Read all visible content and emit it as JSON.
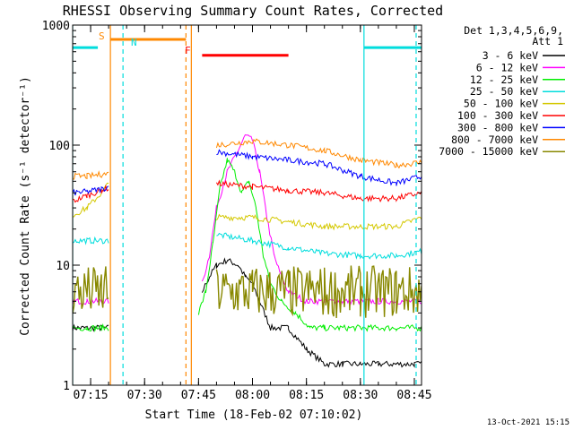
{
  "chart_data": {
    "type": "line",
    "title": "RHESSI Observing Summary Count Rates, Corrected",
    "xlabel": "Start Time (18-Feb-02 07:10:02)",
    "ylabel": "Corrected Count Rate (s⁻¹ detector⁻¹)",
    "yscale": "log",
    "ylim": [
      1,
      1000
    ],
    "xlim_minutes": [
      0,
      97
    ],
    "x_ticks": [
      {
        "value": 5,
        "label": "07:15"
      },
      {
        "value": 20,
        "label": "07:30"
      },
      {
        "value": 35,
        "label": "07:45"
      },
      {
        "value": 50,
        "label": "08:00"
      },
      {
        "value": 65,
        "label": "08:15"
      },
      {
        "value": 80,
        "label": "08:30"
      },
      {
        "value": 95,
        "label": "08:45"
      }
    ],
    "y_ticks": [
      {
        "value": 1,
        "label": "1"
      },
      {
        "value": 10,
        "label": "10"
      },
      {
        "value": 100,
        "label": "100"
      },
      {
        "value": 1000,
        "label": "1000"
      }
    ],
    "legend": {
      "header": [
        "Det 1,3,4,5,6,9,",
        "Att 1"
      ],
      "placement": "right"
    },
    "series": [
      {
        "name": "3 - 6 keV",
        "color": "#000000",
        "x": [
          0,
          4,
          8,
          10,
          30,
          33,
          36,
          38,
          40,
          43,
          46,
          48,
          50,
          52,
          55,
          60,
          65,
          70,
          75,
          80,
          85,
          90,
          95,
          97
        ],
        "y": [
          3,
          3,
          3,
          3,
          null,
          null,
          6,
          8,
          10,
          11,
          10,
          8,
          7,
          5,
          3,
          3,
          2,
          1.5,
          1.5,
          1.5,
          1.5,
          1.5,
          1.5,
          1.5
        ]
      },
      {
        "name": "6 - 12 keV",
        "color": "#ff00ff",
        "x": [
          0,
          4,
          8,
          10,
          30,
          33,
          36,
          38,
          40,
          43,
          46,
          48,
          50,
          52,
          54,
          56,
          58,
          60,
          65,
          70,
          75,
          80,
          85,
          90,
          95,
          97
        ],
        "y": [
          5,
          5,
          5,
          5,
          null,
          null,
          7,
          12,
          30,
          60,
          90,
          120,
          110,
          60,
          25,
          12,
          8,
          6,
          5,
          5,
          5,
          5,
          5,
          5,
          5,
          5
        ]
      },
      {
        "name": "12 - 25 keV",
        "color": "#00ee00",
        "x": [
          0,
          4,
          8,
          10,
          30,
          33,
          35,
          37,
          39,
          41,
          43,
          45,
          47,
          49,
          51,
          53,
          55,
          58,
          62,
          66,
          70,
          80,
          90,
          97
        ],
        "y": [
          3,
          3,
          3,
          3,
          null,
          null,
          4,
          6,
          15,
          45,
          75,
          60,
          40,
          50,
          30,
          12,
          7,
          5,
          4,
          3,
          3,
          3,
          3,
          3
        ]
      },
      {
        "name": "25 - 50 keV",
        "color": "#00dddd",
        "x": [
          0,
          4,
          8,
          10,
          30,
          33,
          40,
          50,
          60,
          70,
          80,
          90,
          97
        ],
        "y": [
          16,
          16,
          16,
          16,
          null,
          null,
          18,
          16,
          14,
          12.5,
          12,
          12,
          13
        ]
      },
      {
        "name": "50 - 100 keV",
        "color": "#d4c800",
        "x": [
          0,
          4,
          8,
          10,
          30,
          33,
          40,
          50,
          60,
          70,
          80,
          90,
          97
        ],
        "y": [
          26,
          30,
          40,
          48,
          null,
          null,
          25,
          25,
          23,
          21,
          21,
          21,
          25
        ]
      },
      {
        "name": "100 - 300 keV",
        "color": "#ff0000",
        "x": [
          0,
          4,
          8,
          10,
          30,
          33,
          40,
          50,
          60,
          70,
          80,
          90,
          97
        ],
        "y": [
          34,
          38,
          42,
          44,
          null,
          null,
          48,
          45,
          42,
          40,
          36,
          36,
          40
        ]
      },
      {
        "name": "300 - 800 keV",
        "color": "#0000ff",
        "x": [
          0,
          4,
          8,
          10,
          30,
          33,
          40,
          50,
          60,
          70,
          80,
          90,
          97
        ],
        "y": [
          40,
          41,
          43,
          45,
          null,
          null,
          88,
          80,
          75,
          70,
          55,
          48,
          55
        ]
      },
      {
        "name": "800 - 7000 keV",
        "color": "#ff8800",
        "x": [
          0,
          4,
          8,
          10,
          30,
          33,
          40,
          50,
          60,
          70,
          80,
          90,
          97
        ],
        "y": [
          55,
          55,
          57,
          58,
          null,
          null,
          100,
          108,
          100,
          90,
          75,
          68,
          72
        ]
      },
      {
        "name": "7000 - 15000 keV",
        "color": "#888800",
        "x": [
          0,
          4,
          8,
          10,
          30,
          33,
          40,
          50,
          60,
          70,
          80,
          90,
          97
        ],
        "y": [
          6,
          6,
          6,
          6,
          null,
          null,
          6,
          6,
          6,
          6,
          6,
          6,
          6
        ]
      }
    ],
    "annotations": {
      "markers": [
        {
          "label": "S",
          "color": "#ff8800"
        },
        {
          "label": "N",
          "color": "#00dddd"
        },
        {
          "label": "F",
          "color": "#ff0000"
        }
      ],
      "vlines": [
        {
          "x": 0,
          "color": "#00dddd",
          "style": "solid"
        },
        {
          "x": 10.5,
          "color": "#ff8800",
          "style": "solid"
        },
        {
          "x": 14,
          "color": "#00dddd",
          "style": "dashed"
        },
        {
          "x": 31.5,
          "color": "#ff8800",
          "style": "dashed"
        },
        {
          "x": 33,
          "color": "#ff8800",
          "style": "solid"
        },
        {
          "x": 81,
          "color": "#00dddd",
          "style": "solid"
        },
        {
          "x": 95.5,
          "color": "#00dddd",
          "style": "dashed"
        }
      ],
      "hbars": [
        {
          "x0": 0,
          "x1": 7,
          "y": 650,
          "color": "#00dddd"
        },
        {
          "x0": 10.5,
          "x1": 31.5,
          "y": 760,
          "color": "#ff8800"
        },
        {
          "x0": 36,
          "x1": 60,
          "y": 560,
          "color": "#ff0000"
        },
        {
          "x0": 81,
          "x1": 97,
          "y": 650,
          "color": "#00dddd"
        }
      ]
    },
    "footer": "13-Oct-2021 15:15"
  }
}
